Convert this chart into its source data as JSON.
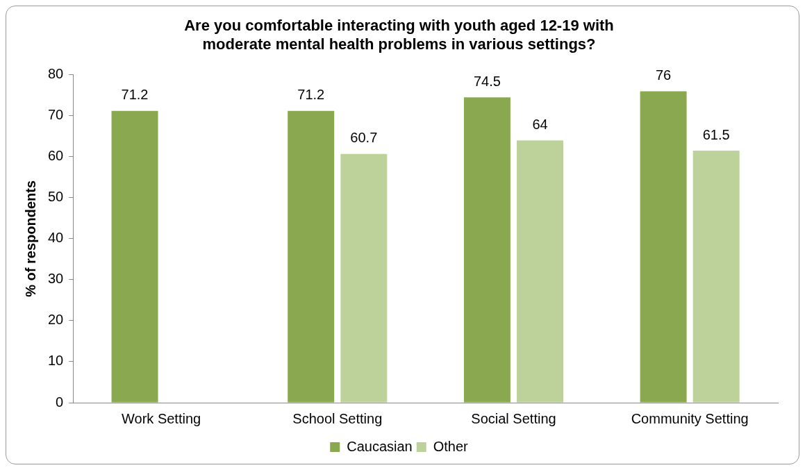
{
  "chart_data": {
    "type": "bar",
    "title": "Are you comfortable interacting with youth aged 12-19 with moderate mental health problems in various settings?",
    "ylabel": "% of respondents",
    "categories": [
      "Work Setting",
      "School Setting",
      "Social Setting",
      "Community Setting"
    ],
    "series": [
      {
        "name": "Caucasian",
        "color": "#8aa84f",
        "values": [
          71.2,
          71.2,
          74.5,
          76
        ]
      },
      {
        "name": "Other",
        "color": "#bdd29b",
        "values": [
          null,
          60.7,
          64,
          61.5
        ]
      }
    ],
    "ylim": [
      0,
      80
    ],
    "yticks": [
      0,
      10,
      20,
      30,
      40,
      50,
      60,
      70,
      80
    ],
    "grid": false,
    "legend": "bottom",
    "data_labels": true
  }
}
